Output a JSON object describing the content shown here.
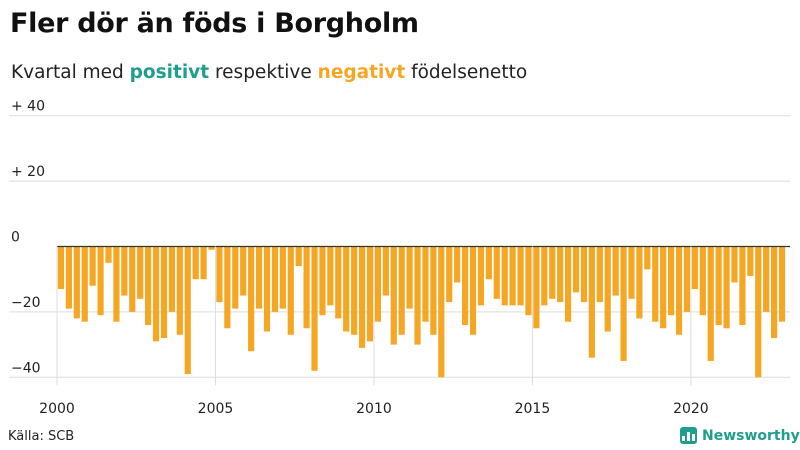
{
  "title": "Fler dör än föds i Borgholm",
  "subtitle": {
    "prefix": "Kvartal med",
    "positive_word": "positivt",
    "middle": "respektive",
    "negative_word": "negativt",
    "suffix": "födelsenetto"
  },
  "source": "Källa: SCB",
  "brand": {
    "name": "Newsworthy",
    "color": "#1f9e8e",
    "icon": "bar-chart-icon"
  },
  "colors": {
    "positive": "#1f9e8e",
    "negative": "#f5a623",
    "grid": "#dddddd",
    "zero_line": "#333333"
  },
  "chart_data": {
    "type": "bar",
    "x_start": "2000 Q1",
    "x_end": "2022 Q4",
    "period": "quarter",
    "ylim": [
      -42,
      42
    ],
    "y_ticks": [
      {
        "value": 40,
        "label": "+ 40"
      },
      {
        "value": 20,
        "label": "+ 20"
      },
      {
        "value": 0,
        "label": "0"
      },
      {
        "value": -20,
        "label": "−20"
      },
      {
        "value": -40,
        "label": "−40"
      }
    ],
    "x_ticks": [
      "2000",
      "2005",
      "2010",
      "2015",
      "2020"
    ],
    "grid": true,
    "values": [
      -13,
      -19,
      -22,
      -23,
      -12,
      -21,
      -5,
      -23,
      -15,
      -20,
      -16,
      -24,
      -29,
      -28,
      -20,
      -27,
      -39,
      -10,
      -10,
      -1,
      -17,
      -25,
      -19,
      -15,
      -32,
      -19,
      -26,
      -20,
      -19,
      -27,
      -6,
      -25,
      -38,
      -21,
      -18,
      -22,
      -26,
      -27,
      -31,
      -29,
      -23,
      -15,
      -30,
      -27,
      -19,
      -30,
      -23,
      -27,
      -40,
      -17,
      -11,
      -24,
      -27,
      -18,
      -10,
      -16,
      -18,
      -18,
      -18,
      -21,
      -25,
      -18,
      -16,
      -17,
      -23,
      -14,
      -17,
      -34,
      -17,
      -26,
      -15,
      -35,
      -16,
      -22,
      -7,
      -23,
      -25,
      -21,
      -27,
      -20,
      -13,
      -21,
      -35,
      -24,
      -25,
      -11,
      -24,
      -9,
      -40,
      -20,
      -28,
      -23
    ]
  }
}
